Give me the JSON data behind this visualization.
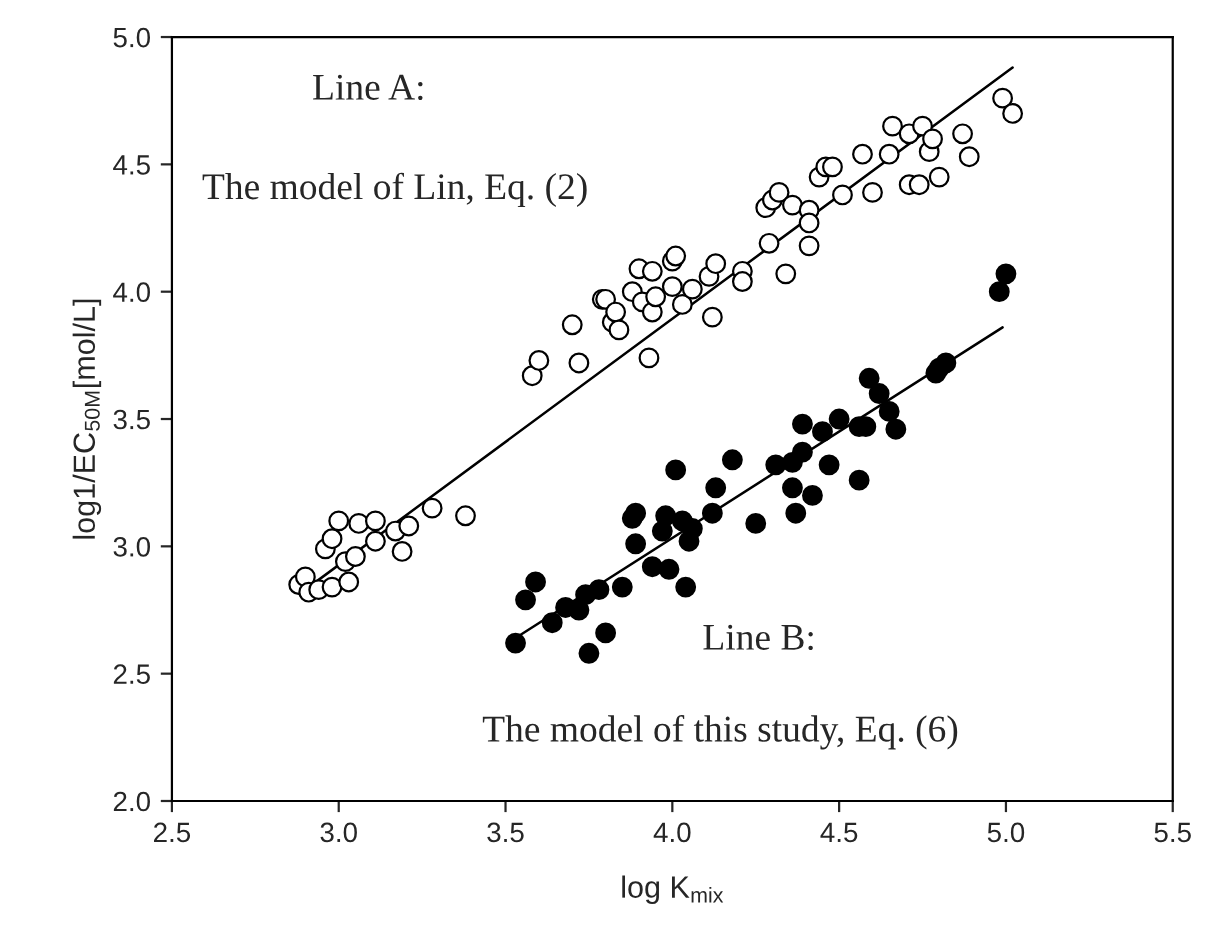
{
  "chart_data": {
    "type": "scatter",
    "xlabel": "log K$_{mix}$",
    "ylabel": "log1/EC$_{50M}$[mol/L]",
    "xlim": [
      2.5,
      5.5
    ],
    "ylim": [
      2.0,
      5.0
    ],
    "xticks": [
      {
        "value": 2.5,
        "label": "2.5"
      },
      {
        "value": 3.0,
        "label": "3.0"
      },
      {
        "value": 3.5,
        "label": "3.5"
      },
      {
        "value": 4.0,
        "label": "4.0"
      },
      {
        "value": 4.5,
        "label": "4.5"
      },
      {
        "value": 5.0,
        "label": "5.0"
      },
      {
        "value": 5.5,
        "label": "5.5"
      }
    ],
    "yticks": [
      {
        "value": 2.0,
        "label": "2.0"
      },
      {
        "value": 2.5,
        "label": "2.5"
      },
      {
        "value": 3.0,
        "label": "3.0"
      },
      {
        "value": 3.5,
        "label": "3.5"
      },
      {
        "value": 4.0,
        "label": "4.0"
      },
      {
        "value": 4.5,
        "label": "4.5"
      },
      {
        "value": 5.0,
        "label": "5.0"
      }
    ],
    "grid": false,
    "legend": false,
    "marker": "circle",
    "annotations": [
      "Line A:",
      "The model of Lin, Eq. (2)",
      "Line B:",
      "The model of this study, Eq. (6)"
    ],
    "series": [
      {
        "color": "#ffffff",
        "x": [
          2.88,
          2.9,
          2.91,
          2.94,
          2.96,
          2.98,
          2.98,
          3.0,
          3.02,
          3.03,
          3.05,
          3.06,
          3.11,
          3.11,
          3.17,
          3.19,
          3.21,
          3.28,
          3.38,
          3.58,
          3.6,
          3.7,
          3.72,
          3.79,
          3.8,
          3.82,
          3.83,
          3.84,
          3.88,
          3.9,
          3.91,
          3.93,
          3.94,
          3.94,
          3.95,
          4.0,
          4.0,
          4.01,
          4.03,
          4.06,
          4.11,
          4.12,
          4.13,
          4.21,
          4.21,
          4.28,
          4.29,
          4.3,
          4.32,
          4.34,
          4.36,
          4.41,
          4.41,
          4.41,
          4.44,
          4.46,
          4.48,
          4.51,
          4.57,
          4.6,
          4.65,
          4.66,
          4.71,
          4.71,
          4.74,
          4.75,
          4.77,
          4.78,
          4.8,
          4.87,
          4.89,
          4.99,
          5.02
        ],
        "values": [
          2.85,
          2.88,
          2.82,
          2.83,
          2.99,
          3.03,
          2.84,
          3.1,
          2.94,
          2.86,
          2.96,
          3.09,
          3.1,
          3.02,
          3.06,
          2.98,
          3.08,
          3.15,
          3.12,
          3.67,
          3.73,
          3.87,
          3.72,
          3.97,
          3.97,
          3.88,
          3.92,
          3.85,
          4.0,
          4.09,
          3.96,
          3.74,
          4.08,
          3.92,
          3.98,
          4.02,
          4.12,
          4.14,
          3.95,
          4.01,
          4.06,
          3.9,
          4.11,
          4.08,
          4.04,
          4.33,
          4.19,
          4.36,
          4.39,
          4.07,
          4.34,
          4.32,
          4.27,
          4.18,
          4.45,
          4.49,
          4.49,
          4.38,
          4.54,
          4.39,
          4.54,
          4.65,
          4.62,
          4.42,
          4.42,
          4.65,
          4.55,
          4.6,
          4.45,
          4.62,
          4.53,
          4.76,
          4.7
        ]
      },
      {
        "color": "#000000",
        "x": [
          3.53,
          3.56,
          3.59,
          3.64,
          3.68,
          3.72,
          3.74,
          3.75,
          3.78,
          3.8,
          3.85,
          3.88,
          3.89,
          3.89,
          3.94,
          3.97,
          3.98,
          3.99,
          4.01,
          4.03,
          4.05,
          4.04,
          4.06,
          4.12,
          4.13,
          4.18,
          4.25,
          4.31,
          4.36,
          4.36,
          4.37,
          4.39,
          4.39,
          4.42,
          4.45,
          4.47,
          4.5,
          4.56,
          4.56,
          4.58,
          4.59,
          4.62,
          4.65,
          4.67,
          4.79,
          4.8,
          4.82,
          4.98,
          5.0
        ],
        "values": [
          2.62,
          2.79,
          2.86,
          2.7,
          2.76,
          2.75,
          2.81,
          2.58,
          2.83,
          2.66,
          2.84,
          3.11,
          3.13,
          3.01,
          2.92,
          3.06,
          3.12,
          2.91,
          3.3,
          3.1,
          3.02,
          2.84,
          3.07,
          3.13,
          3.23,
          3.34,
          3.09,
          3.32,
          3.33,
          3.23,
          3.13,
          3.48,
          3.37,
          3.2,
          3.45,
          3.32,
          3.5,
          3.47,
          3.26,
          3.47,
          3.66,
          3.6,
          3.53,
          3.46,
          3.68,
          3.7,
          3.72,
          4.0,
          4.07
        ]
      },
      {
        "type": "line",
        "color": "#000000",
        "marker": "none",
        "line_style": "solid",
        "x": [
          2.9,
          5.02
        ],
        "values": [
          2.83,
          4.88
        ]
      },
      {
        "type": "line",
        "color": "#000000",
        "marker": "none",
        "line_style": "solid",
        "x": [
          3.53,
          4.99
        ],
        "values": [
          2.64,
          3.86
        ]
      }
    ]
  }
}
